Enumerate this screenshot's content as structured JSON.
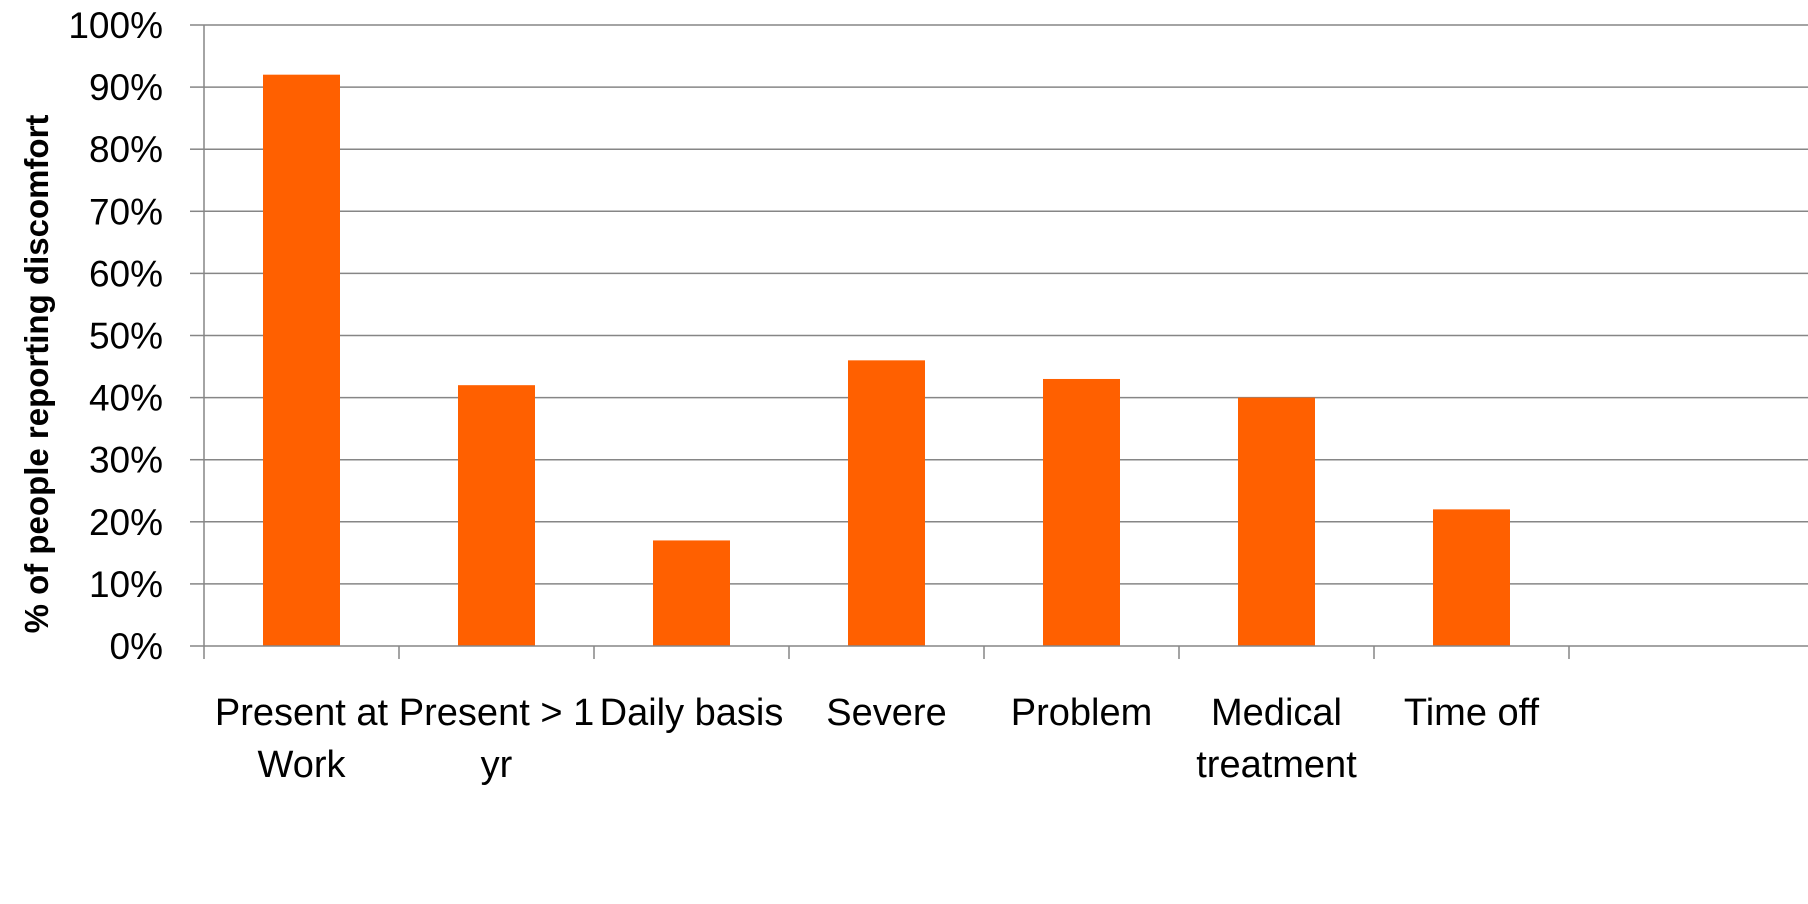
{
  "chart_data": {
    "type": "bar",
    "title": "",
    "xlabel": "",
    "ylabel": "% of people reporting discomfort",
    "categories": [
      [
        "Present at",
        "Work"
      ],
      [
        "Present > 1",
        "yr"
      ],
      [
        "Daily basis"
      ],
      [
        "Severe"
      ],
      [
        "Problem"
      ],
      [
        "Medical",
        "treatment"
      ],
      [
        "Time off"
      ]
    ],
    "values": [
      92,
      42,
      17,
      46,
      43,
      40,
      22
    ],
    "ylim": [
      0,
      100
    ],
    "yticks": [
      0,
      10,
      20,
      30,
      40,
      50,
      60,
      70,
      80,
      90,
      100
    ],
    "ytick_labels": [
      "0%",
      "10%",
      "20%",
      "30%",
      "40%",
      "50%",
      "60%",
      "70%",
      "80%",
      "90%",
      "100%"
    ],
    "grid": true,
    "legend": "none",
    "colors": {
      "bar": "#FF6000",
      "grid": "#868686",
      "axis": "#868686"
    }
  }
}
